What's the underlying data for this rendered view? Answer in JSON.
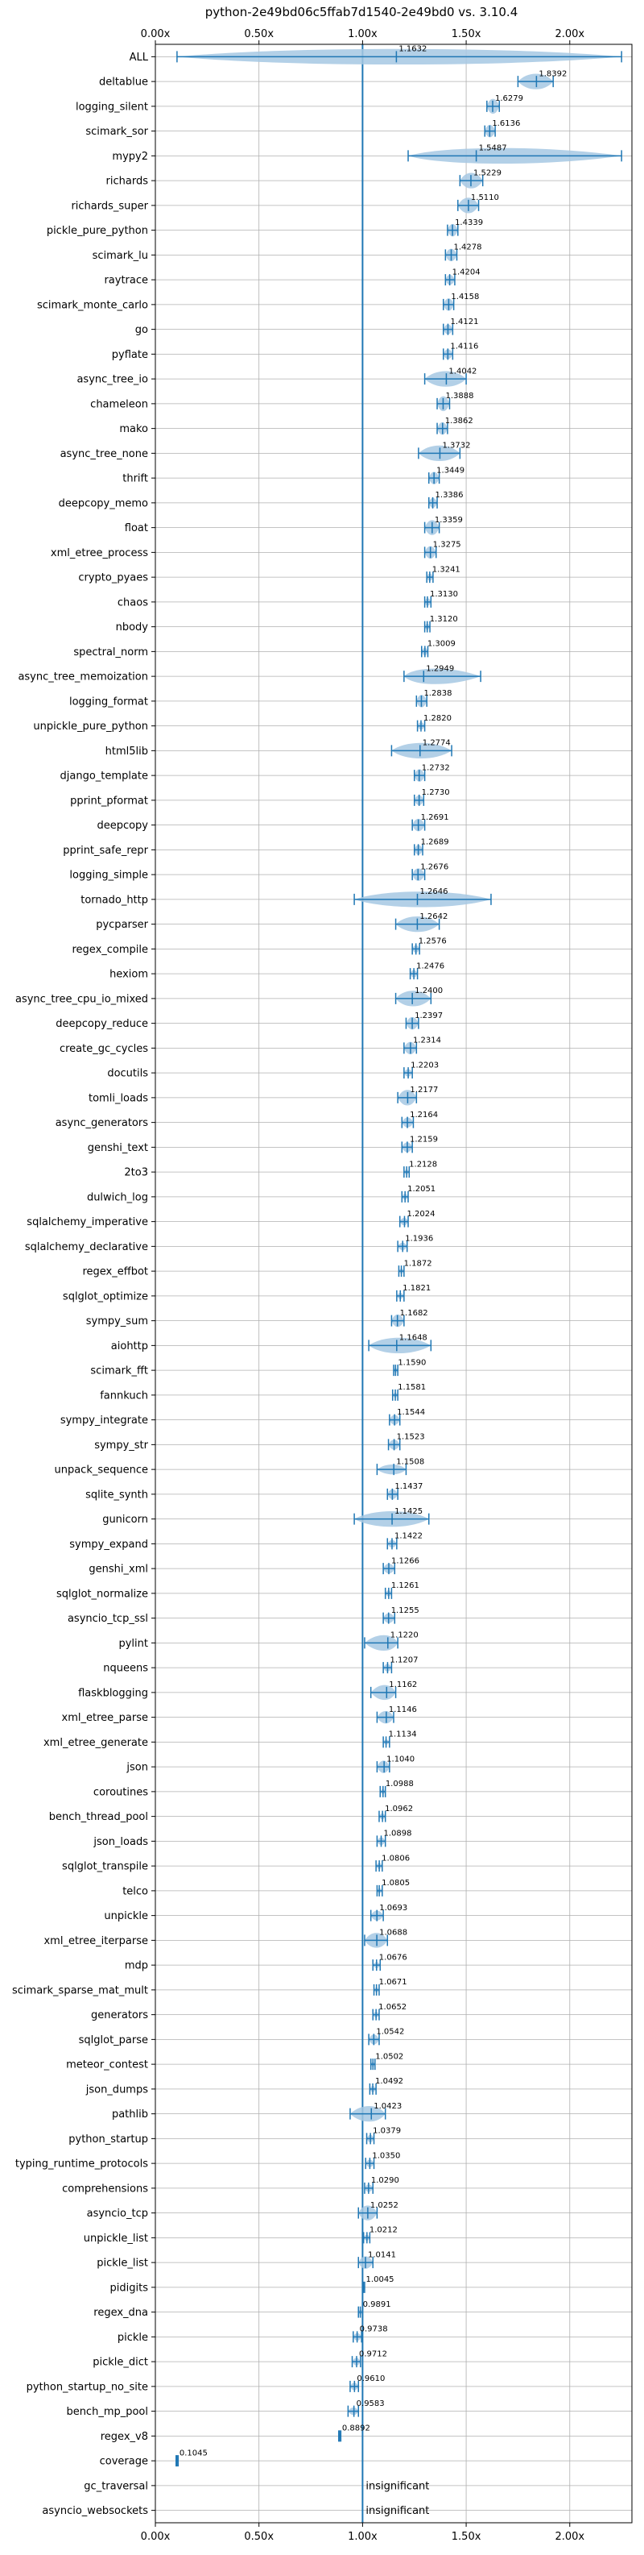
{
  "chart_data": {
    "type": "violin",
    "title": "python-2e49bd06c5ffab7d1540-2e49bd0 vs. 3.10.4",
    "xlabel": "",
    "ylabel": "",
    "xlim": [
      0,
      2.3
    ],
    "x_ticks": [
      0,
      0.5,
      1.0,
      1.5,
      2.0
    ],
    "x_tick_labels": [
      "0.00x",
      "0.50x",
      "1.00x",
      "1.50x",
      "2.00x"
    ],
    "reference_line": 1.0,
    "grid": true,
    "accent_color": "#1f77b4",
    "violin_color": "#a6c8e3",
    "benchmarks": [
      {
        "name": "ALL",
        "value": 1.1632,
        "label": "1.1632",
        "min": 0.1045,
        "max": 2.25,
        "spread": 0.35
      },
      {
        "name": "deltablue",
        "value": 1.8392,
        "label": "1.8392",
        "min": 1.75,
        "max": 1.92,
        "spread": 0.07
      },
      {
        "name": "logging_silent",
        "value": 1.6279,
        "label": "1.6279",
        "min": 1.6,
        "max": 1.66,
        "spread": 0.03
      },
      {
        "name": "scimark_sor",
        "value": 1.6136,
        "label": "1.6136",
        "min": 1.59,
        "max": 1.64,
        "spread": 0.025
      },
      {
        "name": "mypy2",
        "value": 1.5487,
        "label": "1.5487",
        "min": 1.22,
        "max": 2.25,
        "spread": 0.5
      },
      {
        "name": "richards",
        "value": 1.5229,
        "label": "1.5229",
        "min": 1.47,
        "max": 1.58,
        "spread": 0.05
      },
      {
        "name": "richards_super",
        "value": 1.511,
        "label": "1.5110",
        "min": 1.46,
        "max": 1.56,
        "spread": 0.05
      },
      {
        "name": "pickle_pure_python",
        "value": 1.4339,
        "label": "1.4339",
        "min": 1.41,
        "max": 1.46,
        "spread": 0.025
      },
      {
        "name": "scimark_lu",
        "value": 1.4278,
        "label": "1.4278",
        "min": 1.4,
        "max": 1.455,
        "spread": 0.025
      },
      {
        "name": "raytrace",
        "value": 1.4204,
        "label": "1.4204",
        "min": 1.4,
        "max": 1.445,
        "spread": 0.02
      },
      {
        "name": "scimark_monte_carlo",
        "value": 1.4158,
        "label": "1.4158",
        "min": 1.39,
        "max": 1.44,
        "spread": 0.025
      },
      {
        "name": "go",
        "value": 1.4121,
        "label": "1.4121",
        "min": 1.39,
        "max": 1.435,
        "spread": 0.02
      },
      {
        "name": "pyflate",
        "value": 1.4116,
        "label": "1.4116",
        "min": 1.39,
        "max": 1.435,
        "spread": 0.02
      },
      {
        "name": "async_tree_io",
        "value": 1.4042,
        "label": "1.4042",
        "min": 1.3,
        "max": 1.5,
        "spread": 0.08
      },
      {
        "name": "chameleon",
        "value": 1.3888,
        "label": "1.3888",
        "min": 1.36,
        "max": 1.42,
        "spread": 0.03
      },
      {
        "name": "mako",
        "value": 1.3862,
        "label": "1.3862",
        "min": 1.36,
        "max": 1.41,
        "spread": 0.025
      },
      {
        "name": "async_tree_none",
        "value": 1.3732,
        "label": "1.3732",
        "min": 1.27,
        "max": 1.47,
        "spread": 0.07
      },
      {
        "name": "thrift",
        "value": 1.3449,
        "label": "1.3449",
        "min": 1.32,
        "max": 1.37,
        "spread": 0.025
      },
      {
        "name": "deepcopy_memo",
        "value": 1.3386,
        "label": "1.3386",
        "min": 1.32,
        "max": 1.36,
        "spread": 0.02
      },
      {
        "name": "float",
        "value": 1.3359,
        "label": "1.3359",
        "min": 1.3,
        "max": 1.37,
        "spread": 0.03
      },
      {
        "name": "xml_etree_process",
        "value": 1.3275,
        "label": "1.3275",
        "min": 1.3,
        "max": 1.355,
        "spread": 0.025
      },
      {
        "name": "crypto_pyaes",
        "value": 1.3241,
        "label": "1.3241",
        "min": 1.31,
        "max": 1.34,
        "spread": 0.015
      },
      {
        "name": "chaos",
        "value": 1.313,
        "label": "1.3130",
        "min": 1.3,
        "max": 1.33,
        "spread": 0.015
      },
      {
        "name": "nbody",
        "value": 1.312,
        "label": "1.3120",
        "min": 1.3,
        "max": 1.325,
        "spread": 0.012
      },
      {
        "name": "spectral_norm",
        "value": 1.3009,
        "label": "1.3009",
        "min": 1.285,
        "max": 1.315,
        "spread": 0.015
      },
      {
        "name": "async_tree_memoization",
        "value": 1.2949,
        "label": "1.2949",
        "min": 1.2,
        "max": 1.57,
        "spread": 0.09
      },
      {
        "name": "logging_format",
        "value": 1.2838,
        "label": "1.2838",
        "min": 1.26,
        "max": 1.31,
        "spread": 0.025
      },
      {
        "name": "unpickle_pure_python",
        "value": 1.282,
        "label": "1.2820",
        "min": 1.265,
        "max": 1.3,
        "spread": 0.015
      },
      {
        "name": "html5lib",
        "value": 1.2774,
        "label": "1.2774",
        "min": 1.14,
        "max": 1.43,
        "spread": 0.08
      },
      {
        "name": "django_template",
        "value": 1.2732,
        "label": "1.2732",
        "min": 1.25,
        "max": 1.3,
        "spread": 0.025
      },
      {
        "name": "pprint_pformat",
        "value": 1.273,
        "label": "1.2730",
        "min": 1.25,
        "max": 1.295,
        "spread": 0.02
      },
      {
        "name": "deepcopy",
        "value": 1.2691,
        "label": "1.2691",
        "min": 1.24,
        "max": 1.3,
        "spread": 0.025
      },
      {
        "name": "pprint_safe_repr",
        "value": 1.2689,
        "label": "1.2689",
        "min": 1.25,
        "max": 1.29,
        "spread": 0.02
      },
      {
        "name": "logging_simple",
        "value": 1.2676,
        "label": "1.2676",
        "min": 1.24,
        "max": 1.3,
        "spread": 0.025
      },
      {
        "name": "tornado_http",
        "value": 1.2646,
        "label": "1.2646",
        "min": 0.96,
        "max": 1.62,
        "spread": 0.17
      },
      {
        "name": "pycparser",
        "value": 1.2642,
        "label": "1.2642",
        "min": 1.16,
        "max": 1.37,
        "spread": 0.06
      },
      {
        "name": "regex_compile",
        "value": 1.2576,
        "label": "1.2576",
        "min": 1.24,
        "max": 1.275,
        "spread": 0.015
      },
      {
        "name": "hexiom",
        "value": 1.2476,
        "label": "1.2476",
        "min": 1.23,
        "max": 1.265,
        "spread": 0.015
      },
      {
        "name": "async_tree_cpu_io_mixed",
        "value": 1.24,
        "label": "1.2400",
        "min": 1.16,
        "max": 1.33,
        "spread": 0.06
      },
      {
        "name": "deepcopy_reduce",
        "value": 1.2397,
        "label": "1.2397",
        "min": 1.21,
        "max": 1.27,
        "spread": 0.025
      },
      {
        "name": "create_gc_cycles",
        "value": 1.2314,
        "label": "1.2314",
        "min": 1.2,
        "max": 1.26,
        "spread": 0.025
      },
      {
        "name": "docutils",
        "value": 1.2203,
        "label": "1.2203",
        "min": 1.2,
        "max": 1.24,
        "spread": 0.015
      },
      {
        "name": "tomli_loads",
        "value": 1.2177,
        "label": "1.2177",
        "min": 1.17,
        "max": 1.26,
        "spread": 0.035
      },
      {
        "name": "async_generators",
        "value": 1.2164,
        "label": "1.2164",
        "min": 1.19,
        "max": 1.245,
        "spread": 0.02
      },
      {
        "name": "genshi_text",
        "value": 1.2159,
        "label": "1.2159",
        "min": 1.19,
        "max": 1.24,
        "spread": 0.02
      },
      {
        "name": "2to3",
        "value": 1.2128,
        "label": "1.2128",
        "min": 1.2,
        "max": 1.225,
        "spread": 0.01
      },
      {
        "name": "dulwich_log",
        "value": 1.2051,
        "label": "1.2051",
        "min": 1.19,
        "max": 1.22,
        "spread": 0.012
      },
      {
        "name": "sqlalchemy_imperative",
        "value": 1.2024,
        "label": "1.2024",
        "min": 1.18,
        "max": 1.22,
        "spread": 0.015
      },
      {
        "name": "sqlalchemy_declarative",
        "value": 1.1936,
        "label": "1.1936",
        "min": 1.17,
        "max": 1.215,
        "spread": 0.015
      },
      {
        "name": "regex_effbot",
        "value": 1.1872,
        "label": "1.1872",
        "min": 1.175,
        "max": 1.2,
        "spread": 0.01
      },
      {
        "name": "sqlglot_optimize",
        "value": 1.1821,
        "label": "1.1821",
        "min": 1.165,
        "max": 1.2,
        "spread": 0.012
      },
      {
        "name": "sympy_sum",
        "value": 1.1682,
        "label": "1.1682",
        "min": 1.14,
        "max": 1.2,
        "spread": 0.025
      },
      {
        "name": "aiohttp",
        "value": 1.1648,
        "label": "1.1648",
        "min": 1.03,
        "max": 1.33,
        "spread": 0.08
      },
      {
        "name": "scimark_fft",
        "value": 1.159,
        "label": "1.1590",
        "min": 1.15,
        "max": 1.17,
        "spread": 0.008
      },
      {
        "name": "fannkuch",
        "value": 1.1581,
        "label": "1.1581",
        "min": 1.145,
        "max": 1.17,
        "spread": 0.01
      },
      {
        "name": "sympy_integrate",
        "value": 1.1544,
        "label": "1.1544",
        "min": 1.13,
        "max": 1.18,
        "spread": 0.02
      },
      {
        "name": "sympy_str",
        "value": 1.1523,
        "label": "1.1523",
        "min": 1.125,
        "max": 1.18,
        "spread": 0.02
      },
      {
        "name": "unpack_sequence",
        "value": 1.1508,
        "label": "1.1508",
        "min": 1.07,
        "max": 1.21,
        "spread": 0.02
      },
      {
        "name": "sqlite_synth",
        "value": 1.1437,
        "label": "1.1437",
        "min": 1.12,
        "max": 1.17,
        "spread": 0.02
      },
      {
        "name": "gunicorn",
        "value": 1.1425,
        "label": "1.1425",
        "min": 0.96,
        "max": 1.32,
        "spread": 0.07
      },
      {
        "name": "sympy_expand",
        "value": 1.1422,
        "label": "1.1422",
        "min": 1.12,
        "max": 1.165,
        "spread": 0.015
      },
      {
        "name": "genshi_xml",
        "value": 1.1266,
        "label": "1.1266",
        "min": 1.1,
        "max": 1.155,
        "spread": 0.02
      },
      {
        "name": "sqlglot_normalize",
        "value": 1.1261,
        "label": "1.1261",
        "min": 1.11,
        "max": 1.14,
        "spread": 0.012
      },
      {
        "name": "asyncio_tcp_ssl",
        "value": 1.1255,
        "label": "1.1255",
        "min": 1.1,
        "max": 1.155,
        "spread": 0.02
      },
      {
        "name": "pylint",
        "value": 1.122,
        "label": "1.1220",
        "min": 1.01,
        "max": 1.17,
        "spread": 0.04
      },
      {
        "name": "nqueens",
        "value": 1.1207,
        "label": "1.1207",
        "min": 1.1,
        "max": 1.14,
        "spread": 0.015
      },
      {
        "name": "flaskblogging",
        "value": 1.1162,
        "label": "1.1162",
        "min": 1.04,
        "max": 1.16,
        "spread": 0.03
      },
      {
        "name": "xml_etree_parse",
        "value": 1.1146,
        "label": "1.1146",
        "min": 1.07,
        "max": 1.15,
        "spread": 0.025
      },
      {
        "name": "xml_etree_generate",
        "value": 1.1134,
        "label": "1.1134",
        "min": 1.1,
        "max": 1.13,
        "spread": 0.01
      },
      {
        "name": "json",
        "value": 1.104,
        "label": "1.1040",
        "min": 1.07,
        "max": 1.13,
        "spread": 0.025
      },
      {
        "name": "coroutines",
        "value": 1.0988,
        "label": "1.0988",
        "min": 1.085,
        "max": 1.11,
        "spread": 0.01
      },
      {
        "name": "bench_thread_pool",
        "value": 1.0962,
        "label": "1.0962",
        "min": 1.08,
        "max": 1.11,
        "spread": 0.012
      },
      {
        "name": "json_loads",
        "value": 1.0898,
        "label": "1.0898",
        "min": 1.07,
        "max": 1.11,
        "spread": 0.015
      },
      {
        "name": "sqlglot_transpile",
        "value": 1.0806,
        "label": "1.0806",
        "min": 1.065,
        "max": 1.095,
        "spread": 0.012
      },
      {
        "name": "telco",
        "value": 1.0805,
        "label": "1.0805",
        "min": 1.07,
        "max": 1.095,
        "spread": 0.01
      },
      {
        "name": "unpickle",
        "value": 1.0693,
        "label": "1.0693",
        "min": 1.04,
        "max": 1.1,
        "spread": 0.02
      },
      {
        "name": "xml_etree_iterparse",
        "value": 1.0688,
        "label": "1.0688",
        "min": 1.01,
        "max": 1.12,
        "spread": 0.03
      },
      {
        "name": "mdp",
        "value": 1.0676,
        "label": "1.0676",
        "min": 1.05,
        "max": 1.085,
        "spread": 0.012
      },
      {
        "name": "scimark_sparse_mat_mult",
        "value": 1.0671,
        "label": "1.0671",
        "min": 1.055,
        "max": 1.08,
        "spread": 0.01
      },
      {
        "name": "generators",
        "value": 1.0652,
        "label": "1.0652",
        "min": 1.05,
        "max": 1.08,
        "spread": 0.012
      },
      {
        "name": "sqlglot_parse",
        "value": 1.0542,
        "label": "1.0542",
        "min": 1.03,
        "max": 1.08,
        "spread": 0.02
      },
      {
        "name": "meteor_contest",
        "value": 1.0502,
        "label": "1.0502",
        "min": 1.04,
        "max": 1.06,
        "spread": 0.008
      },
      {
        "name": "json_dumps",
        "value": 1.0492,
        "label": "1.0492",
        "min": 1.035,
        "max": 1.065,
        "spread": 0.012
      },
      {
        "name": "pathlib",
        "value": 1.0423,
        "label": "1.0423",
        "min": 0.94,
        "max": 1.11,
        "spread": 0.04
      },
      {
        "name": "python_startup",
        "value": 1.0379,
        "label": "1.0379",
        "min": 1.02,
        "max": 1.055,
        "spread": 0.015
      },
      {
        "name": "typing_runtime_protocols",
        "value": 1.035,
        "label": "1.0350",
        "min": 1.015,
        "max": 1.055,
        "spread": 0.015
      },
      {
        "name": "comprehensions",
        "value": 1.029,
        "label": "1.0290",
        "min": 1.01,
        "max": 1.05,
        "spread": 0.015
      },
      {
        "name": "asyncio_tcp",
        "value": 1.0252,
        "label": "1.0252",
        "min": 0.98,
        "max": 1.07,
        "spread": 0.03
      },
      {
        "name": "unpickle_list",
        "value": 1.0212,
        "label": "1.0212",
        "min": 1.005,
        "max": 1.035,
        "spread": 0.012
      },
      {
        "name": "pickle_list",
        "value": 1.0141,
        "label": "1.0141",
        "min": 0.98,
        "max": 1.05,
        "spread": 0.025
      },
      {
        "name": "pidigits",
        "value": 1.0045,
        "label": "1.0045",
        "min": 1.0,
        "max": 1.01,
        "spread": 0.005
      },
      {
        "name": "regex_dna",
        "value": 0.9891,
        "label": "0.9891",
        "min": 0.98,
        "max": 1.0,
        "spread": 0.008
      },
      {
        "name": "pickle",
        "value": 0.9738,
        "label": "0.9738",
        "min": 0.955,
        "max": 0.995,
        "spread": 0.015
      },
      {
        "name": "pickle_dict",
        "value": 0.9712,
        "label": "0.9712",
        "min": 0.95,
        "max": 0.99,
        "spread": 0.015
      },
      {
        "name": "python_startup_no_site",
        "value": 0.961,
        "label": "0.9610",
        "min": 0.94,
        "max": 0.98,
        "spread": 0.015
      },
      {
        "name": "bench_mp_pool",
        "value": 0.9583,
        "label": "0.9583",
        "min": 0.93,
        "max": 0.98,
        "spread": 0.015
      },
      {
        "name": "regex_v8",
        "value": 0.8892,
        "label": "0.8892",
        "min": 0.885,
        "max": 0.895,
        "spread": 0.005
      },
      {
        "name": "coverage",
        "value": 0.1045,
        "label": "0.1045",
        "min": 0.1,
        "max": 0.11,
        "spread": 0.004
      },
      {
        "name": "gc_traversal",
        "value": null,
        "label": "insignificant"
      },
      {
        "name": "asyncio_websockets",
        "value": null,
        "label": "insignificant"
      }
    ]
  }
}
